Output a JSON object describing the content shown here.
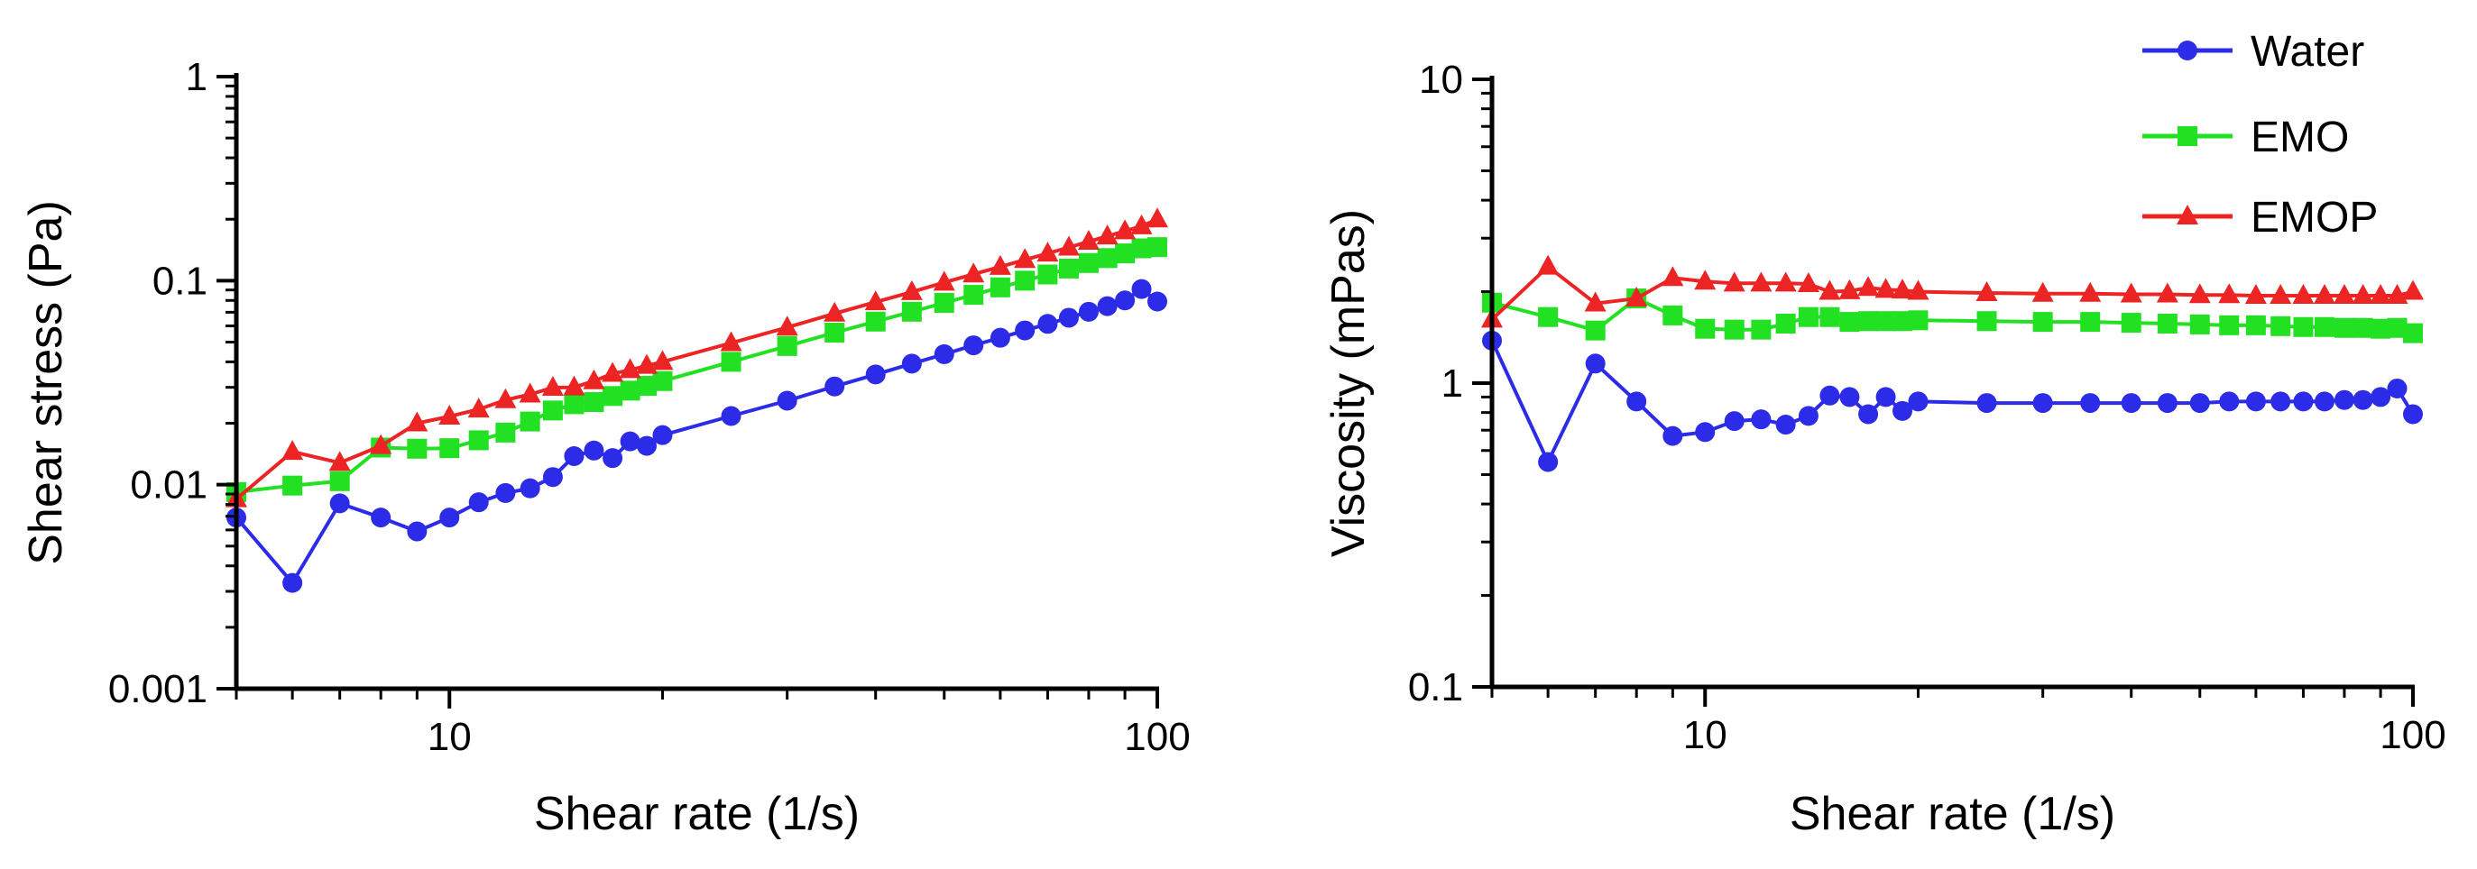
{
  "figure": {
    "series": [
      {
        "name": "Water",
        "color": "#2B2BE8",
        "marker": "circle"
      },
      {
        "name": "EMO",
        "color": "#22E022",
        "marker": "square"
      },
      {
        "name": "EMOP",
        "color": "#EC2424",
        "marker": "triangle"
      }
    ],
    "legend": {
      "placement": "top-right",
      "entries": [
        "Water",
        "EMO",
        "EMOP"
      ]
    }
  },
  "chart_data": [
    {
      "type": "line",
      "title": "",
      "xlabel": "Shear rate (1/s)",
      "ylabel": "Shear stress (Pa)",
      "xscale": "log",
      "yscale": "log",
      "xlim": [
        5,
        100
      ],
      "ylim": [
        0.001,
        1
      ],
      "xticks": [
        10,
        100
      ],
      "xtick_labels": [
        "10",
        "100"
      ],
      "yticks": [
        0.001,
        0.01,
        0.1,
        1
      ],
      "ytick_labels": [
        "0.001",
        "0.01",
        "0.1",
        "1"
      ],
      "grid": false,
      "series": [
        {
          "name": "Water",
          "x": [
            5,
            6,
            7,
            8,
            9,
            10,
            11,
            12,
            13,
            14,
            15,
            16,
            17,
            18,
            19,
            20,
            25,
            30,
            35,
            40,
            45,
            50,
            55,
            60,
            65,
            70,
            75,
            80,
            85,
            90,
            95,
            100
          ],
          "y": [
            0.0069,
            0.0033,
            0.0081,
            0.0069,
            0.0059,
            0.0069,
            0.0082,
            0.0091,
            0.0096,
            0.0109,
            0.0138,
            0.0147,
            0.0135,
            0.0163,
            0.0155,
            0.0175,
            0.0217,
            0.0258,
            0.0303,
            0.0347,
            0.0392,
            0.0436,
            0.0482,
            0.0525,
            0.057,
            0.0614,
            0.0658,
            0.0704,
            0.075,
            0.08,
            0.091,
            0.079
          ]
        },
        {
          "name": "EMO",
          "x": [
            5,
            6,
            7,
            8,
            9,
            10,
            11,
            12,
            13,
            14,
            15,
            16,
            17,
            18,
            19,
            20,
            25,
            30,
            35,
            40,
            45,
            50,
            55,
            60,
            65,
            70,
            75,
            80,
            85,
            90,
            95,
            100
          ],
          "y": [
            0.0092,
            0.0099,
            0.0104,
            0.0152,
            0.015,
            0.0151,
            0.0165,
            0.018,
            0.0204,
            0.0231,
            0.0248,
            0.0254,
            0.0272,
            0.0289,
            0.0305,
            0.0322,
            0.04,
            0.0478,
            0.0556,
            0.063,
            0.0704,
            0.0778,
            0.0852,
            0.0927,
            0.1,
            0.1072,
            0.1146,
            0.122,
            0.129,
            0.136,
            0.144,
            0.146
          ]
        },
        {
          "name": "EMOP",
          "x": [
            5,
            6,
            7,
            8,
            9,
            10,
            11,
            12,
            13,
            14,
            15,
            16,
            17,
            18,
            19,
            20,
            25,
            30,
            35,
            40,
            45,
            50,
            55,
            60,
            65,
            70,
            75,
            80,
            85,
            90,
            95,
            100
          ],
          "y": [
            0.0085,
            0.0145,
            0.0128,
            0.0155,
            0.02,
            0.0216,
            0.0234,
            0.026,
            0.0277,
            0.0299,
            0.03,
            0.0322,
            0.035,
            0.0365,
            0.0383,
            0.04,
            0.0495,
            0.059,
            0.069,
            0.0785,
            0.088,
            0.098,
            0.1075,
            0.117,
            0.1265,
            0.136,
            0.1455,
            0.1555,
            0.165,
            0.175,
            0.185,
            0.2
          ]
        }
      ]
    },
    {
      "type": "line",
      "title": "",
      "xlabel": "Shear rate (1/s)",
      "ylabel": "Viscosity (mPas)",
      "xscale": "log",
      "yscale": "log",
      "xlim": [
        5,
        100
      ],
      "ylim": [
        0.1,
        10
      ],
      "xticks": [
        10,
        100
      ],
      "xtick_labels": [
        "10",
        "100"
      ],
      "yticks": [
        0.1,
        1,
        10
      ],
      "ytick_labels": [
        "0.1",
        "1",
        "10"
      ],
      "grid": false,
      "series": [
        {
          "name": "Water",
          "x": [
            5,
            6,
            7,
            8,
            9,
            10,
            11,
            12,
            13,
            14,
            15,
            16,
            17,
            18,
            19,
            20,
            25,
            30,
            35,
            40,
            45,
            50,
            55,
            60,
            65,
            70,
            75,
            80,
            85,
            90,
            95,
            100
          ],
          "y": [
            1.38,
            0.55,
            1.16,
            0.87,
            0.67,
            0.69,
            0.75,
            0.76,
            0.73,
            0.78,
            0.91,
            0.9,
            0.79,
            0.9,
            0.81,
            0.87,
            0.86,
            0.86,
            0.86,
            0.86,
            0.86,
            0.86,
            0.87,
            0.87,
            0.87,
            0.87,
            0.87,
            0.88,
            0.88,
            0.9,
            0.96,
            0.79
          ]
        },
        {
          "name": "EMO",
          "x": [
            5,
            6,
            7,
            8,
            9,
            10,
            11,
            12,
            13,
            14,
            15,
            16,
            17,
            18,
            19,
            20,
            25,
            30,
            35,
            40,
            45,
            50,
            55,
            60,
            65,
            70,
            75,
            80,
            85,
            90,
            95,
            100
          ],
          "y": [
            1.84,
            1.65,
            1.49,
            1.9,
            1.67,
            1.51,
            1.5,
            1.5,
            1.57,
            1.65,
            1.65,
            1.59,
            1.6,
            1.6,
            1.6,
            1.61,
            1.6,
            1.59,
            1.59,
            1.58,
            1.57,
            1.56,
            1.55,
            1.55,
            1.54,
            1.53,
            1.53,
            1.52,
            1.52,
            1.51,
            1.52,
            1.46
          ]
        },
        {
          "name": "EMOP",
          "x": [
            5,
            6,
            7,
            8,
            9,
            10,
            11,
            12,
            13,
            14,
            15,
            16,
            17,
            18,
            19,
            20,
            25,
            30,
            35,
            40,
            45,
            50,
            55,
            60,
            65,
            70,
            75,
            80,
            85,
            90,
            95,
            100
          ],
          "y": [
            1.62,
            2.42,
            1.83,
            1.9,
            2.22,
            2.16,
            2.13,
            2.13,
            2.13,
            2.12,
            2.0,
            2.01,
            2.06,
            2.03,
            2.02,
            2.0,
            1.98,
            1.97,
            1.97,
            1.96,
            1.96,
            1.95,
            1.95,
            1.94,
            1.94,
            1.94,
            1.94,
            1.94,
            1.94,
            1.94,
            1.94,
            2.0
          ]
        }
      ]
    }
  ]
}
